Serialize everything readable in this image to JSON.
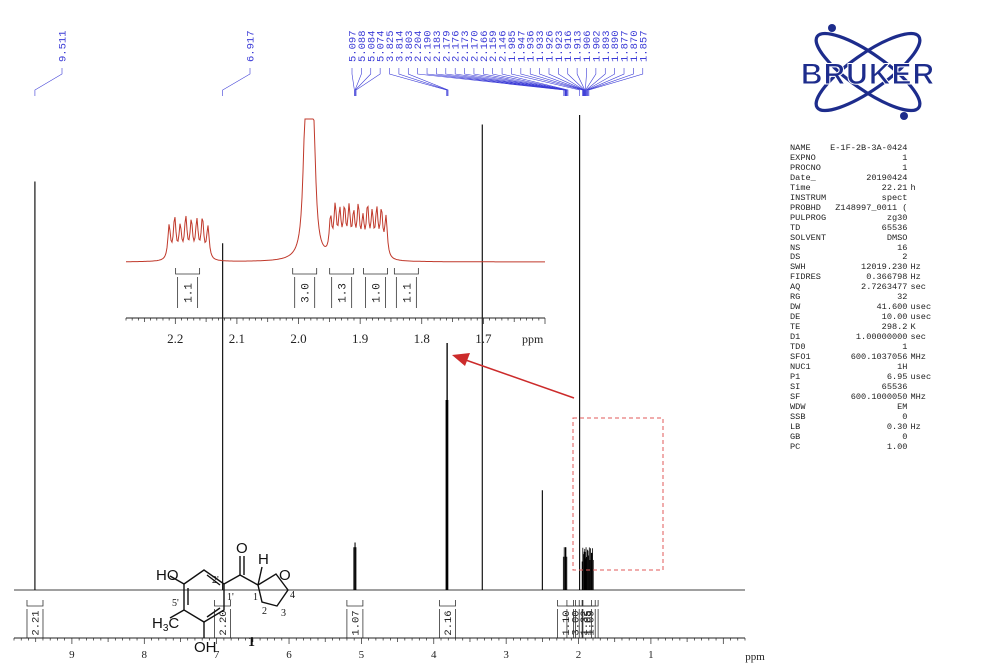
{
  "chart_data": {
    "type": "line",
    "title": "",
    "xlabel": "ppm",
    "ylabel": "",
    "xlim": [
      9.8,
      -0.3
    ],
    "x_ticks": [
      "9",
      "8",
      "7",
      "6",
      "5",
      "4",
      "3",
      "2",
      "1"
    ],
    "series": [
      {
        "peaks": [
          {
            "ppm": 9.511,
            "height": 0.86
          },
          {
            "ppm": 6.917,
            "height": 0.73
          },
          {
            "ppm": 5.088,
            "height": 0.1
          },
          {
            "ppm": 3.814,
            "height": 0.52
          },
          {
            "ppm": 3.33,
            "height": 0.98
          },
          {
            "ppm": 2.5,
            "height": 0.21
          },
          {
            "ppm": 2.18,
            "height": 0.09
          },
          {
            "ppm": 1.985,
            "height": 1.0
          },
          {
            "ppm": 1.9,
            "height": 0.08
          }
        ]
      }
    ],
    "peak_labels": [
      "9.511",
      "6.917",
      "5.097",
      "5.088",
      "5.084",
      "5.074",
      "3.825",
      "3.814",
      "3.803",
      "2.204",
      "2.190",
      "2.183",
      "2.179",
      "2.176",
      "2.173",
      "2.170",
      "2.166",
      "2.159",
      "2.146",
      "1.985",
      "1.947",
      "1.936",
      "1.933",
      "1.926",
      "1.923",
      "1.916",
      "1.913",
      "1.906",
      "1.902",
      "1.893",
      "1.890",
      "1.877",
      "1.870",
      "1.857"
    ],
    "integrals": [
      {
        "center": 9.51,
        "value": "2.21"
      },
      {
        "center": 6.92,
        "value": "2.20"
      },
      {
        "center": 5.09,
        "value": "1.07"
      },
      {
        "center": 3.81,
        "value": "2.16"
      },
      {
        "center": 2.18,
        "value": "1.10"
      },
      {
        "center": 2.05,
        "value": "3.00"
      },
      {
        "center": 1.93,
        "value": "1.32"
      },
      {
        "center": 1.88,
        "value": "1.05"
      },
      {
        "center": 1.84,
        "value": "1.09"
      }
    ],
    "inset": {
      "xlabel": "ppm",
      "xlim": [
        2.28,
        1.6
      ],
      "x_ticks": [
        "2.2",
        "2.1",
        "2.0",
        "1.9",
        "1.8",
        "1.7"
      ],
      "integrals": [
        {
          "center": 2.18,
          "value": "1.1"
        },
        {
          "center": 1.99,
          "value": "3.0"
        },
        {
          "center": 1.93,
          "value": "1.3"
        },
        {
          "center": 1.875,
          "value": "1.0"
        },
        {
          "center": 1.825,
          "value": "1.1"
        }
      ],
      "line_color": "#c0392b",
      "highlight_color": "#e05a5a",
      "highlight_range_ppm": [
        2.6,
        1.7
      ]
    },
    "grid": false,
    "spectrum_color": "#000000",
    "peak_label_color": "#3b3bd6"
  },
  "logo": {
    "text": "BRUKER",
    "color": "#1d2c8c"
  },
  "parameters": [
    {
      "name": "NAME",
      "value": "E-1F-2B-3A-0424",
      "unit": ""
    },
    {
      "name": "EXPNO",
      "value": "1",
      "unit": ""
    },
    {
      "name": "PROCNO",
      "value": "1",
      "unit": ""
    },
    {
      "name": "Date_",
      "value": "20190424",
      "unit": ""
    },
    {
      "name": "Time",
      "value": "22.21",
      "unit": "h"
    },
    {
      "name": "INSTRUM",
      "value": "spect",
      "unit": ""
    },
    {
      "name": "PROBHD",
      "value": "Z148997_0011 (",
      "unit": ""
    },
    {
      "name": "PULPROG",
      "value": "zg30",
      "unit": ""
    },
    {
      "name": "TD",
      "value": "65536",
      "unit": ""
    },
    {
      "name": "SOLVENT",
      "value": "DMSO",
      "unit": ""
    },
    {
      "name": "NS",
      "value": "16",
      "unit": ""
    },
    {
      "name": "DS",
      "value": "2",
      "unit": ""
    },
    {
      "name": "SWH",
      "value": "12019.230",
      "unit": "Hz"
    },
    {
      "name": "FIDRES",
      "value": "0.366798",
      "unit": "Hz"
    },
    {
      "name": "AQ",
      "value": "2.7263477",
      "unit": "sec"
    },
    {
      "name": "RG",
      "value": "32",
      "unit": ""
    },
    {
      "name": "DW",
      "value": "41.600",
      "unit": "usec"
    },
    {
      "name": "DE",
      "value": "10.00",
      "unit": "usec"
    },
    {
      "name": "TE",
      "value": "298.2",
      "unit": "K"
    },
    {
      "name": "D1",
      "value": "1.00000000",
      "unit": "sec"
    },
    {
      "name": "TD0",
      "value": "1",
      "unit": ""
    },
    {
      "name": "SFO1",
      "value": "600.1037056",
      "unit": "MHz"
    },
    {
      "name": "NUC1",
      "value": "1H",
      "unit": ""
    },
    {
      "name": "P1",
      "value": "6.95",
      "unit": "usec"
    },
    {
      "name": "SI",
      "value": "65536",
      "unit": ""
    },
    {
      "name": "SF",
      "value": "600.1000050",
      "unit": "MHz"
    },
    {
      "name": "WDW",
      "value": "EM",
      "unit": ""
    },
    {
      "name": "SSB",
      "value": "0",
      "unit": ""
    },
    {
      "name": "LB",
      "value": "0.30",
      "unit": "Hz"
    },
    {
      "name": "GB",
      "value": "0",
      "unit": ""
    },
    {
      "name": "PC",
      "value": "1.00",
      "unit": ""
    }
  ],
  "structure": {
    "compound_number": "1",
    "labels": {
      "ho": "HO",
      "oh": "OH",
      "h3c": "H3C",
      "h": "H",
      "o_carbonyl": "O",
      "o_ring": "O",
      "c1p": "1'",
      "c2p": "2'",
      "c5p": "5'",
      "c1": "1",
      "c2": "2",
      "c3": "3",
      "c4": "4"
    }
  }
}
